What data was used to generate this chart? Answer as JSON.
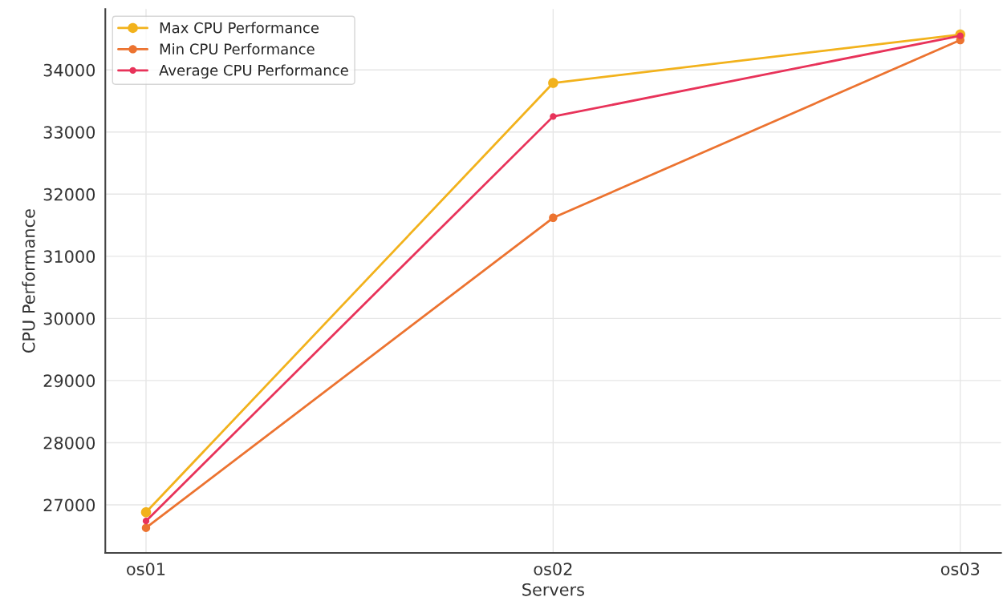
{
  "chart_data": {
    "type": "line",
    "xlabel": "Servers",
    "ylabel": "CPU Performance",
    "categories": [
      "os01",
      "os02",
      "os03"
    ],
    "series": [
      {
        "name": "Max CPU Performance",
        "color": "#f2b21c",
        "values": [
          26880,
          33790,
          34570
        ]
      },
      {
        "name": "Min CPU Performance",
        "color": "#ec7330",
        "values": [
          26630,
          31620,
          34480
        ]
      },
      {
        "name": "Average CPU Performance",
        "color": "#e8335a",
        "values": [
          26740,
          33250,
          34550
        ]
      }
    ],
    "ylim": [
      26226,
      34980
    ],
    "yticks": [
      27000,
      28000,
      29000,
      30000,
      31000,
      32000,
      33000,
      34000
    ],
    "grid": true,
    "legend": "top left",
    "marker": "circle",
    "line_style": "solid"
  }
}
